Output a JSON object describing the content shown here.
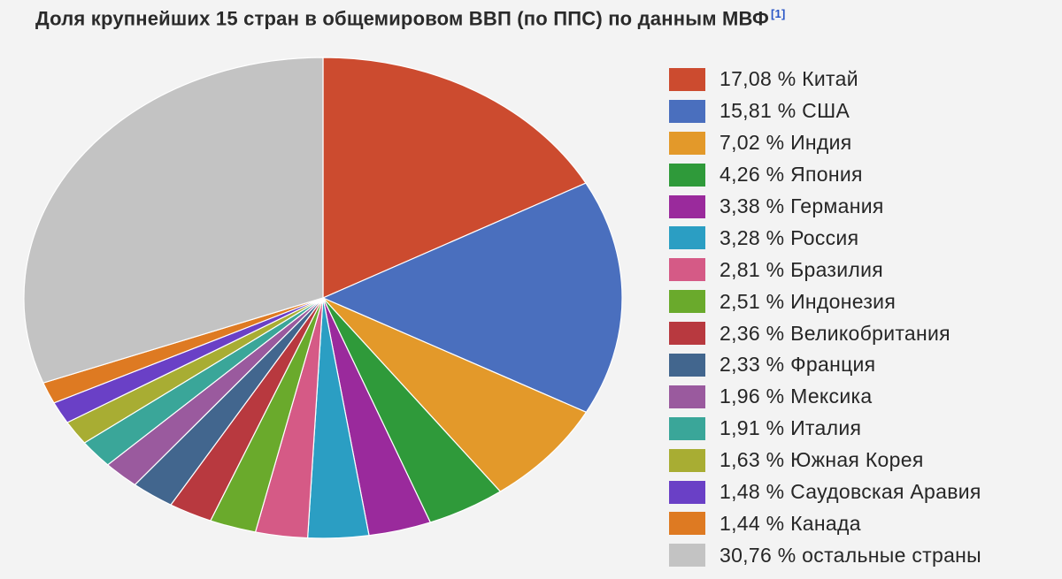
{
  "title": "Доля крупнейших 15 стран в общемировом ВВП (по ППС) по данным МВФ",
  "title_ref": "[1]",
  "chart_data": {
    "type": "pie",
    "title": "Доля крупнейших 15 стран в общемировом ВВП (по ППС) по данным МВФ",
    "legend_position": "right",
    "start_angle": "12 o'clock",
    "direction": "clockwise",
    "slices": [
      {
        "label": "17,08 % Китай",
        "name": "Китай",
        "value": 17.08,
        "color": "#cc4b2f"
      },
      {
        "label": "15,81 % США",
        "name": "США",
        "value": 15.81,
        "color": "#4a6fbe"
      },
      {
        "label": "7,02 % Индия",
        "name": "Индия",
        "value": 7.02,
        "color": "#e3992a"
      },
      {
        "label": "4,26 % Япония",
        "name": "Япония",
        "value": 4.26,
        "color": "#2f9a3a"
      },
      {
        "label": "3,38 % Германия",
        "name": "Германия",
        "value": 3.38,
        "color": "#9a2a9c"
      },
      {
        "label": "3,28 % Россия",
        "name": "Россия",
        "value": 3.28,
        "color": "#2b9ec3"
      },
      {
        "label": "2,81 % Бразилия",
        "name": "Бразилия",
        "value": 2.81,
        "color": "#d55a86"
      },
      {
        "label": "2,51 % Индонезия",
        "name": "Индонезия",
        "value": 2.51,
        "color": "#6aaa2c"
      },
      {
        "label": "2,36 % Великобритания",
        "name": "Великобритания",
        "value": 2.36,
        "color": "#b8393f"
      },
      {
        "label": "2,33 % Франция",
        "name": "Франция",
        "value": 2.33,
        "color": "#42668e"
      },
      {
        "label": "1,96 % Мексика",
        "name": "Мексика",
        "value": 1.96,
        "color": "#9a5a9e"
      },
      {
        "label": "1,91 % Италия",
        "name": "Италия",
        "value": 1.91,
        "color": "#3aa699"
      },
      {
        "label": "1,63 % Южная Корея",
        "name": "Южная Корея",
        "value": 1.63,
        "color": "#a8ad33"
      },
      {
        "label": "1,48 % Саудовская Аравия",
        "name": "Саудовская Аравия",
        "value": 1.48,
        "color": "#6a40c6"
      },
      {
        "label": "1,44 % Канада",
        "name": "Канада",
        "value": 1.44,
        "color": "#de7a22"
      },
      {
        "label": "30,76 % остальные страны",
        "name": "остальные страны",
        "value": 30.76,
        "color": "#c3c3c3"
      }
    ]
  }
}
